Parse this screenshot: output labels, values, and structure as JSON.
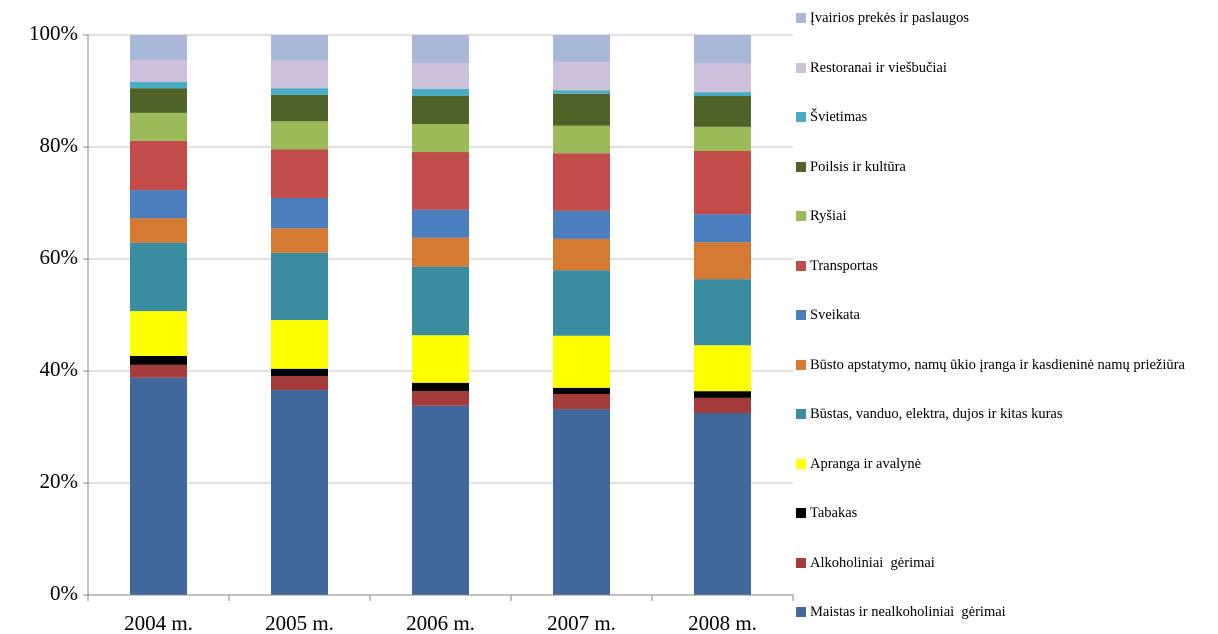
{
  "chart_data": {
    "type": "stacked_bar",
    "categories": [
      "2004 m.",
      "2005 m.",
      "2006 m.",
      "2007 m.",
      "2008 m."
    ],
    "ylim": [
      0,
      100
    ],
    "yticks": [
      {
        "value": 0,
        "label": "0%"
      },
      {
        "value": 20,
        "label": "20%"
      },
      {
        "value": 40,
        "label": "40%"
      },
      {
        "value": 60,
        "label": "60%"
      },
      {
        "value": 80,
        "label": "80%"
      },
      {
        "value": 100,
        "label": "100%"
      }
    ],
    "grid": true,
    "legend": "right",
    "series": [
      {
        "name": "Maistas ir nealkoholiniai  gėrimai",
        "color": "#41689c",
        "values": [
          38.8,
          36.6,
          33.8,
          33.2,
          32.5
        ]
      },
      {
        "name": "Alkoholiniai  gėrimai",
        "color": "#a33c3a",
        "values": [
          2.3,
          2.5,
          2.6,
          2.7,
          2.7
        ]
      },
      {
        "name": "Tabakas",
        "color": "#000000",
        "values": [
          1.6,
          1.3,
          1.5,
          1.1,
          1.2
        ]
      },
      {
        "name": "Apranga ir avalynė",
        "color": "#ffff00",
        "values": [
          8.0,
          8.7,
          8.5,
          9.3,
          8.2
        ]
      },
      {
        "name": "Būstas, vanduo, elektra, dujos ir kitas kuras",
        "color": "#3a8ca0",
        "values": [
          12.2,
          12.0,
          12.2,
          11.7,
          11.8
        ]
      },
      {
        "name": "Būsto apstatymo, namų ūkio įranga ir kasdieninė namų priežiūra",
        "color": "#d47a32",
        "values": [
          4.4,
          4.4,
          5.2,
          5.6,
          6.6
        ]
      },
      {
        "name": "Sveikata",
        "color": "#4a7ebf",
        "values": [
          5.0,
          5.4,
          5.0,
          5.0,
          5.0
        ]
      },
      {
        "name": "Transportas",
        "color": "#c24c4a",
        "values": [
          8.8,
          8.7,
          10.3,
          10.3,
          11.3
        ]
      },
      {
        "name": "Ryšiai",
        "color": "#9bbb59",
        "values": [
          5.0,
          5.0,
          5.0,
          4.9,
          4.3
        ]
      },
      {
        "name": "Poilsis ir kultūra",
        "color": "#4f6228",
        "values": [
          4.4,
          4.7,
          5.0,
          5.7,
          5.5
        ]
      },
      {
        "name": "Švietimas",
        "color": "#4bacc6",
        "values": [
          1.1,
          1.2,
          1.3,
          0.6,
          0.7
        ]
      },
      {
        "name": "Restoranai ir viešbučiai",
        "color": "#ccc0da",
        "values": [
          3.9,
          4.9,
          4.6,
          5.1,
          5.2
        ]
      },
      {
        "name": "Įvairios prekės ir paslaugos",
        "color": "#a9b8d9",
        "values": [
          4.5,
          4.6,
          5.0,
          4.8,
          5.0
        ]
      }
    ]
  }
}
